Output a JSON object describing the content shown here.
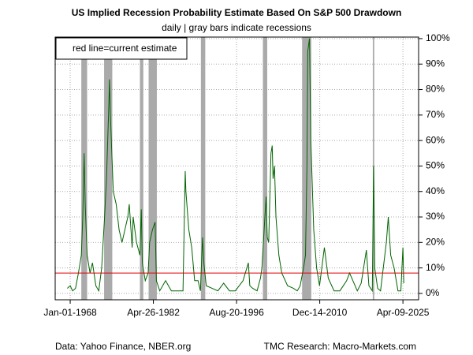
{
  "chart_data": {
    "type": "line",
    "title": "US Implied Recession Probability Estimate Based On S&P 500 Drawdown",
    "subtitle": "daily | gray bars indicate recessions",
    "annotation": "red line=current estimate",
    "source_left": "Data: Yahoo Finance, NBER.org",
    "source_right": "TMC Research: Macro-Markets.com",
    "grid": true,
    "xlim": [
      "1965-06-01",
      "2027-12-20"
    ],
    "xticks": [
      {
        "value": "1968-01-01",
        "label": "Jan-01-1968"
      },
      {
        "value": "1982-04-26",
        "label": "Apr-26-1982"
      },
      {
        "value": "1996-08-20",
        "label": "Aug-20-1996"
      },
      {
        "value": "2010-12-14",
        "label": "Dec-14-2010"
      },
      {
        "value": "2025-04-09",
        "label": "Apr-09-2025"
      }
    ],
    "ylim": [
      -2.5,
      100.6
    ],
    "yticks": [
      {
        "value": 0,
        "label": "0%"
      },
      {
        "value": 10,
        "label": "10%"
      },
      {
        "value": 20,
        "label": "20%"
      },
      {
        "value": 30,
        "label": "30%"
      },
      {
        "value": 40,
        "label": "40%"
      },
      {
        "value": 50,
        "label": "50%"
      },
      {
        "value": 60,
        "label": "60%"
      },
      {
        "value": 70,
        "label": "70%"
      },
      {
        "value": 80,
        "label": "80%"
      },
      {
        "value": 90,
        "label": "90%"
      },
      {
        "value": 100,
        "label": "100%"
      }
    ],
    "recession_color": "#aaaaaa",
    "recessions": [
      {
        "start": "1969-12-01",
        "end": "1970-11-30"
      },
      {
        "start": "1973-11-01",
        "end": "1975-03-31"
      },
      {
        "start": "1980-01-01",
        "end": "1980-07-31"
      },
      {
        "start": "1981-07-01",
        "end": "1982-11-30"
      },
      {
        "start": "1990-07-01",
        "end": "1991-03-31"
      },
      {
        "start": "2001-03-01",
        "end": "2001-11-30"
      },
      {
        "start": "2007-12-01",
        "end": "2009-06-30"
      },
      {
        "start": "2020-02-01",
        "end": "2020-04-30"
      }
    ],
    "current_estimate": {
      "value": 8,
      "color": "#e00000"
    },
    "x": [
      "1967-07-01",
      "1968-01-01",
      "1968-06-01",
      "1968-12-01",
      "1969-06-01",
      "1969-12-01",
      "1970-03-01",
      "1970-05-26",
      "1970-08-01",
      "1970-12-01",
      "1971-06-01",
      "1971-11-01",
      "1972-06-01",
      "1972-12-01",
      "1973-06-01",
      "1973-12-01",
      "1974-04-01",
      "1974-09-01",
      "1974-10-03",
      "1974-12-01",
      "1975-06-01",
      "1975-12-01",
      "1976-06-01",
      "1976-12-01",
      "1977-06-01",
      "1977-12-01",
      "1978-03-01",
      "1978-09-01",
      "1978-11-01",
      "1979-06-01",
      "1980-01-01",
      "1980-03-27",
      "1980-06-01",
      "1980-12-01",
      "1981-06-01",
      "1981-09-01",
      "1982-03-01",
      "1982-08-12",
      "1982-11-01",
      "1983-06-01",
      "1984-06-01",
      "1985-06-01",
      "1986-06-01",
      "1987-06-01",
      "1987-10-19",
      "1987-12-01",
      "1988-06-01",
      "1988-12-01",
      "1989-06-01",
      "1990-01-01",
      "1990-06-01",
      "1990-10-11",
      "1991-01-01",
      "1991-06-01",
      "1992-06-01",
      "1993-06-01",
      "1994-06-01",
      "1995-06-01",
      "1996-06-01",
      "1997-10-01",
      "1998-08-31",
      "1998-12-01",
      "1999-06-01",
      "2000-03-01",
      "2000-10-01",
      "2001-01-01",
      "2001-04-01",
      "2001-09-21",
      "2001-12-01",
      "2002-03-01",
      "2002-07-23",
      "2002-10-09",
      "2002-12-01",
      "2003-03-01",
      "2003-06-01",
      "2003-12-01",
      "2004-06-01",
      "2005-06-01",
      "2006-06-01",
      "2007-02-01",
      "2007-08-01",
      "2008-03-01",
      "2008-07-01",
      "2008-10-01",
      "2008-11-20",
      "2009-03-09",
      "2009-06-01",
      "2009-12-01",
      "2010-06-01",
      "2010-12-01",
      "2011-08-01",
      "2011-10-01",
      "2012-06-01",
      "2013-06-01",
      "2014-06-01",
      "2015-08-01",
      "2016-02-01",
      "2017-06-01",
      "2018-02-01",
      "2018-12-24",
      "2019-06-01",
      "2020-01-01",
      "2020-03-23",
      "2020-06-01",
      "2020-12-01",
      "2021-06-01",
      "2022-06-01",
      "2022-10-01",
      "2023-03-01",
      "2023-10-01",
      "2024-06-01",
      "2024-12-01",
      "2025-04-08",
      "2025-06-01"
    ],
    "series": [
      {
        "name": "estimate",
        "color": "#006400",
        "values": [
          2,
          3,
          1,
          2,
          8,
          15,
          30,
          55,
          35,
          15,
          8,
          12,
          3,
          1,
          10,
          30,
          45,
          75,
          84,
          70,
          40,
          35,
          25,
          20,
          25,
          30,
          35,
          18,
          30,
          20,
          15,
          33,
          12,
          5,
          8,
          20,
          25,
          28,
          5,
          1,
          5,
          1,
          1,
          1,
          48,
          40,
          25,
          18,
          5,
          5,
          1,
          22,
          12,
          3,
          2,
          1,
          4,
          1,
          1,
          5,
          12,
          3,
          2,
          1,
          6,
          10,
          20,
          38,
          22,
          20,
          55,
          58,
          45,
          50,
          30,
          15,
          8,
          3,
          2,
          1,
          3,
          10,
          15,
          50,
          95,
          100,
          60,
          25,
          10,
          3,
          15,
          18,
          6,
          1,
          1,
          5,
          8,
          1,
          4,
          17,
          3,
          1,
          50,
          10,
          2,
          1,
          20,
          30,
          15,
          10,
          1,
          1,
          18,
          4
        ]
      }
    ]
  }
}
